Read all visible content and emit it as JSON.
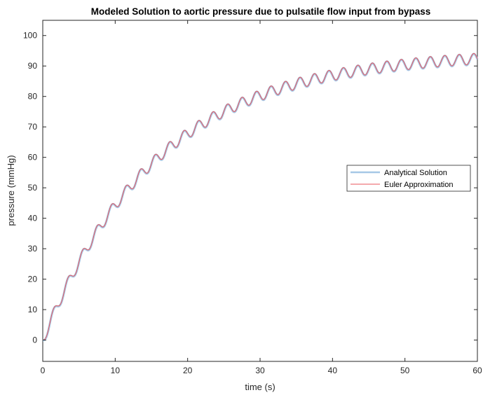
{
  "chart_data": {
    "type": "line",
    "title": "Modeled Solution to aortic pressure due to pulsatile flow input from bypass",
    "xlabel": "time (s)",
    "ylabel": "pressure (mmHg)",
    "xlim": [
      0,
      60
    ],
    "ylim": [
      -7,
      105
    ],
    "xticks": [
      0,
      10,
      20,
      30,
      40,
      50,
      60
    ],
    "yticks": [
      0,
      10,
      20,
      30,
      40,
      50,
      60,
      70,
      80,
      90,
      100
    ],
    "grid": false,
    "legend_position": "right-middle",
    "model": {
      "steady_state": 94.5,
      "time_constant_s": 15.8,
      "oscillation_period_s": 2.0,
      "oscillation_amplitude": 1.8
    },
    "series": [
      {
        "name": "Analytical Solution",
        "color": "#a6c8e6"
      },
      {
        "name": "Euler Approximation",
        "color": "#e8555b"
      }
    ],
    "peaks": {
      "x": [
        1.5,
        3.5,
        5.5,
        7.5,
        9.5,
        11.5,
        13.5,
        15.5,
        17.5,
        19.5,
        21.5,
        23.5,
        25.5,
        27.5,
        29.5,
        31.5,
        33.5,
        35.5,
        37.5,
        39.5,
        41.5,
        43.5,
        45.5,
        47.5,
        49.5,
        51.5,
        53.5,
        55.5,
        57.5,
        59.5
      ],
      "y": [
        12.0,
        21.8,
        30.2,
        38.0,
        45.0,
        51.0,
        56.5,
        61.3,
        65.5,
        69.5,
        73.0,
        76.0,
        78.6,
        81.0,
        83.2,
        85.0,
        86.8,
        88.2,
        89.5,
        90.6,
        91.6,
        92.5,
        93.3,
        94.0,
        94.6,
        95.2,
        95.7,
        96.2,
        96.6,
        97.0
      ]
    }
  }
}
